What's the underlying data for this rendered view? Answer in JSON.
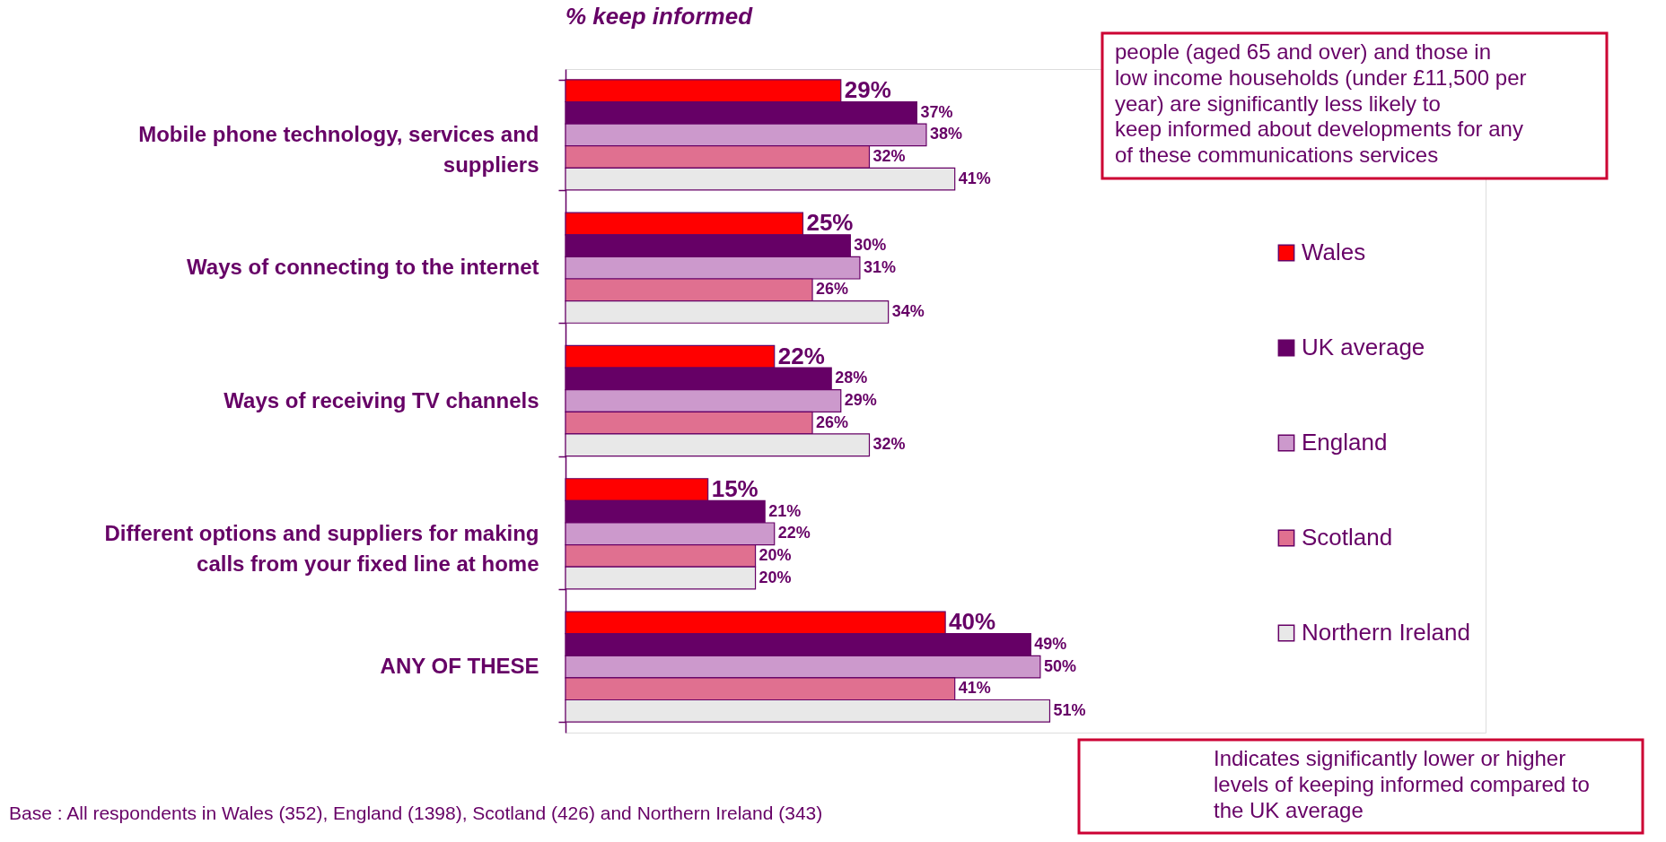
{
  "chart_data": {
    "type": "bar",
    "orientation": "horizontal",
    "title": "% keep informed",
    "categories": [
      "Mobile phone technology, services and suppliers",
      "Ways of connecting to the internet",
      "Ways of receiving TV channels",
      "Different options and suppliers for making calls from your fixed line at home",
      "ANY OF THESE"
    ],
    "series": [
      {
        "name": "Wales",
        "color": "#ff0000",
        "values": [
          29,
          25,
          22,
          15,
          40
        ],
        "value_labels": [
          "29%",
          "25%",
          "22%",
          "15%",
          "40%"
        ]
      },
      {
        "name": "UK average",
        "color": "#660066",
        "values": [
          37,
          30,
          28,
          21,
          49
        ],
        "value_labels": [
          "37%",
          "30%",
          "28%",
          "21%",
          "49%"
        ]
      },
      {
        "name": "England",
        "color": "#cc99cc",
        "values": [
          38,
          31,
          29,
          22,
          50
        ],
        "value_labels": [
          "38%",
          "31%",
          "29%",
          "22%",
          "50%"
        ]
      },
      {
        "name": "Scotland",
        "color": "#e07090",
        "values": [
          32,
          26,
          26,
          20,
          41
        ],
        "value_labels": [
          "32%",
          "26%",
          "26%",
          "20%",
          "41%"
        ]
      },
      {
        "name": "Northern Ireland",
        "color": "#e8e8e8",
        "values": [
          41,
          34,
          32,
          20,
          51
        ],
        "value_labels": [
          "41%",
          "34%",
          "32%",
          "20%",
          "51%"
        ]
      }
    ],
    "tick_labels": "y",
    "legend": "right",
    "annotations": [
      "people (aged 65 and over) and those in low income households (under £11,500 per year) are significantly less likely to keep informed about developments for any of these communications services",
      "Indicates significantly lower or higher levels of keeping informed compared to the UK average",
      "Base : All respondents in Wales (352), England (1398), Scotland (426) and Northern Ireland (343)"
    ]
  }
}
